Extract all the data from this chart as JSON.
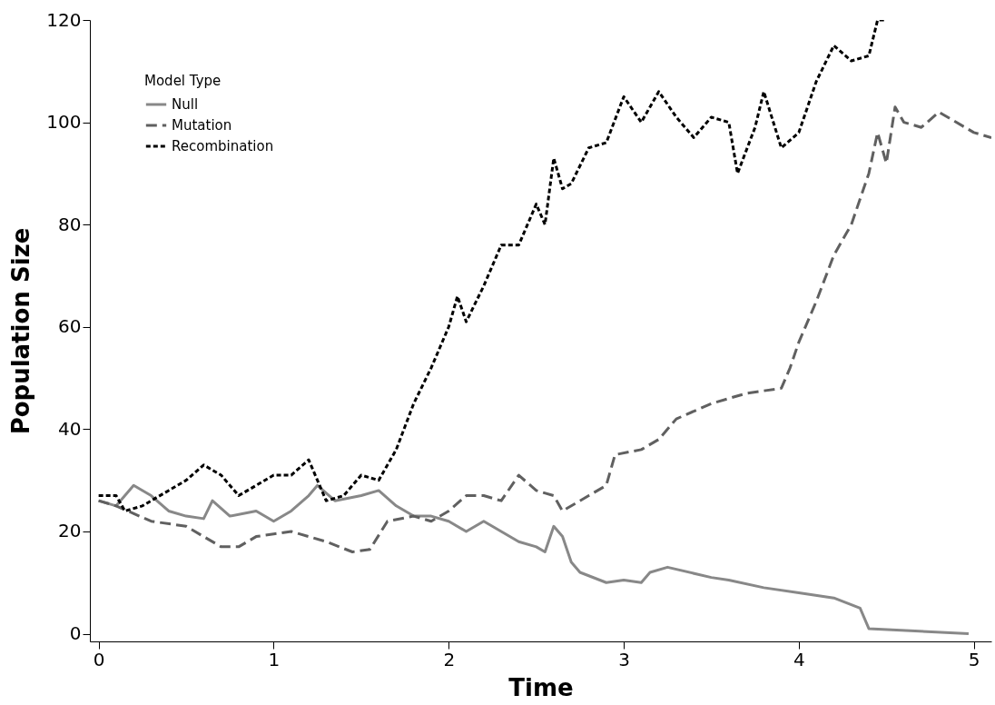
{
  "chart_data": {
    "type": "line",
    "xlabel": "Time",
    "ylabel": "Population Size",
    "legend_title": "Model Type",
    "legend": "top left",
    "grid": false,
    "xlim": [
      -0.05,
      5.1
    ],
    "xticks": [
      0,
      1,
      2,
      3,
      4,
      5
    ],
    "ylim": [
      -1.5,
      120
    ],
    "yticks": [
      0,
      20,
      40,
      60,
      80,
      100,
      120
    ],
    "series": [
      {
        "name": "Null",
        "color": "#888888",
        "line_style": "solid",
        "x": [
          0,
          0.1,
          0.2,
          0.3,
          0.4,
          0.5,
          0.6,
          0.65,
          0.75,
          0.9,
          1.0,
          1.1,
          1.2,
          1.25,
          1.35,
          1.5,
          1.6,
          1.7,
          1.8,
          1.9,
          2.0,
          2.1,
          2.2,
          2.3,
          2.4,
          2.5,
          2.55,
          2.6,
          2.65,
          2.7,
          2.75,
          2.9,
          3.0,
          3.1,
          3.15,
          3.25,
          3.5,
          3.6,
          3.8,
          4.0,
          4.2,
          4.35,
          4.4,
          4.97
        ],
        "values": [
          26,
          25,
          29,
          27,
          24,
          23,
          22.5,
          26,
          23,
          24,
          22,
          24,
          27,
          29,
          26,
          27,
          28,
          25,
          23,
          23,
          22,
          20,
          22,
          20,
          18,
          17,
          16,
          21,
          19,
          14,
          12,
          10,
          10.5,
          10,
          12,
          13,
          11,
          10.5,
          9,
          8,
          7,
          5,
          1,
          0
        ]
      },
      {
        "name": "Mutation",
        "color": "#606060",
        "line_style": "dashed",
        "x": [
          0,
          0.1,
          0.3,
          0.5,
          0.7,
          0.8,
          0.9,
          1.0,
          1.1,
          1.2,
          1.3,
          1.45,
          1.55,
          1.65,
          1.8,
          1.9,
          2.0,
          2.1,
          2.2,
          2.3,
          2.4,
          2.5,
          2.6,
          2.65,
          2.8,
          2.9,
          2.95,
          3.1,
          3.2,
          3.3,
          3.5,
          3.7,
          3.9,
          3.95,
          4.0,
          4.1,
          4.2,
          4.3,
          4.4,
          4.45,
          4.5,
          4.55,
          4.6,
          4.7,
          4.8,
          5.0,
          5.1
        ],
        "values": [
          26,
          25,
          22,
          21,
          17,
          17,
          19,
          19.5,
          20,
          19,
          18,
          16,
          16.5,
          22,
          23,
          22,
          24,
          27,
          27,
          26,
          31,
          28,
          27,
          24,
          27,
          29,
          35,
          36,
          38,
          42,
          45,
          47,
          48,
          52,
          57,
          65,
          74,
          80,
          90,
          98,
          92,
          103,
          100,
          99,
          102,
          98,
          97
        ]
      },
      {
        "name": "Recombination",
        "color": "#000000",
        "line_style": "dotted",
        "x": [
          0,
          0.1,
          0.15,
          0.25,
          0.4,
          0.5,
          0.6,
          0.7,
          0.8,
          0.9,
          1.0,
          1.1,
          1.2,
          1.3,
          1.4,
          1.5,
          1.6,
          1.7,
          1.8,
          1.9,
          2.0,
          2.05,
          2.1,
          2.2,
          2.3,
          2.4,
          2.5,
          2.55,
          2.6,
          2.65,
          2.7,
          2.8,
          2.9,
          3.0,
          3.1,
          3.2,
          3.3,
          3.4,
          3.5,
          3.6,
          3.65,
          3.75,
          3.8,
          3.9,
          4.0,
          4.1,
          4.2,
          4.3,
          4.4,
          4.45,
          4.5
        ],
        "values": [
          27,
          27,
          24,
          25,
          28,
          30,
          33,
          31,
          27,
          29,
          31,
          31,
          34,
          26,
          27,
          31,
          30,
          36,
          45,
          52,
          60,
          66,
          61,
          68,
          76,
          76,
          84,
          80,
          93,
          87,
          88,
          95,
          96,
          105,
          100,
          106,
          101,
          97,
          101,
          100,
          90,
          99,
          106,
          95,
          98,
          108,
          115,
          112,
          113,
          120,
          120
        ]
      }
    ]
  }
}
